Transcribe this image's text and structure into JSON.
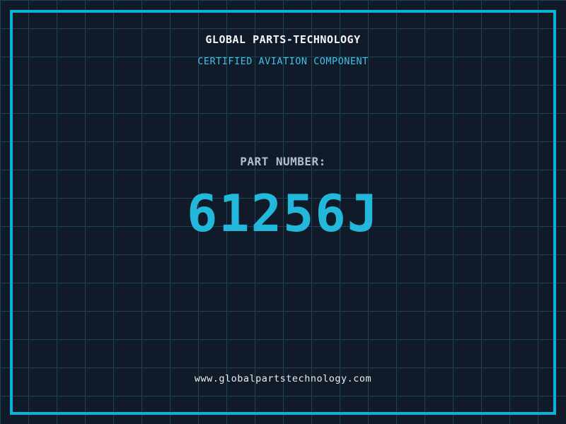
{
  "label": {
    "title": "GLOBAL PARTS-TECHNOLOGY",
    "subtitle": "CERTIFIED AVIATION COMPONENT",
    "part_label": "PART NUMBER:",
    "part_number": "61256J",
    "website": "www.globalpartstechnology.com"
  },
  "colors": {
    "background": "#101a28",
    "grid_line": "#1c4457",
    "frame": "#0cb2d6",
    "title_text": "#f2f6f8",
    "subtitle_text": "#3ec1e4",
    "part_label_text": "#b2bfca",
    "part_number_text": "#22b8dc",
    "website_text": "#e8eef0"
  }
}
